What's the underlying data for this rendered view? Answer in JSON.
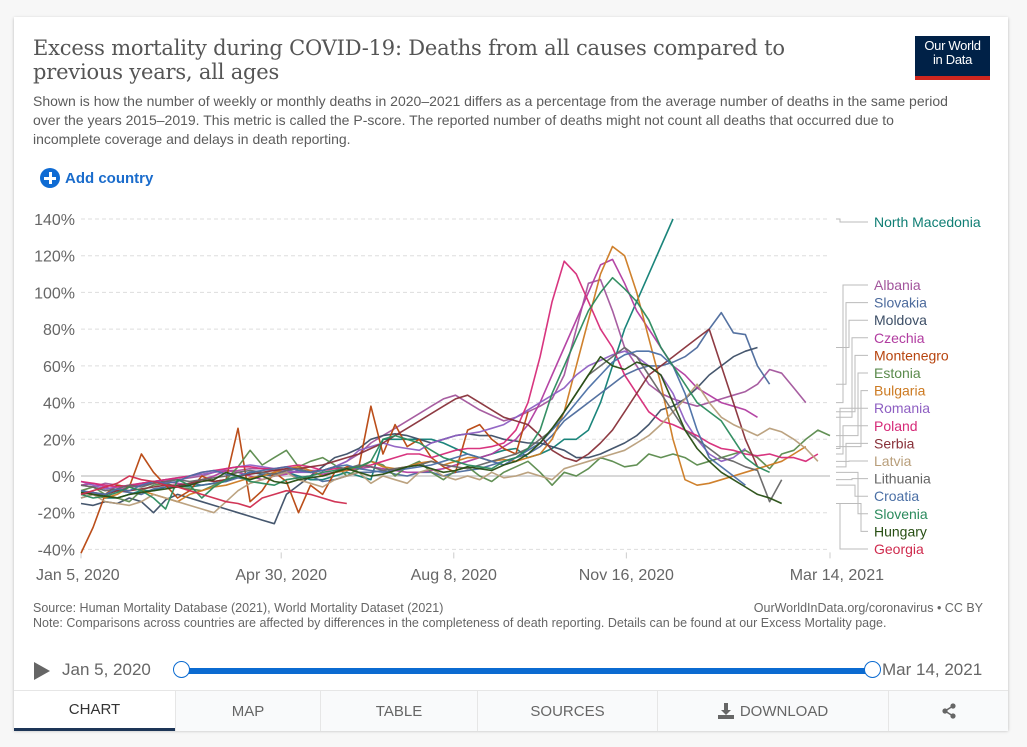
{
  "header": {
    "title": "Excess mortality during COVID-19: Deaths from all causes compared to previous years, all ages",
    "subtitle": "Shown is how the number of weekly or monthly deaths in 2020–2021 differs as a percentage from the average number of deaths in the same period over the years 2015–2019. This metric is called the P-score. The reported number of deaths might not count all deaths that occurred due to incomplete coverage and delays in death reporting.",
    "logo_line1": "Our World",
    "logo_line2": "in Data",
    "add_country_label": "Add country",
    "add_icon": "plus-circle-icon"
  },
  "footer": {
    "source": "Source: Human Mortality Database (2021), World Mortality Dataset (2021)",
    "attribution": "OurWorldInData.org/coronavirus • CC BY",
    "note": "Note: Comparisons across countries are affected by differences in the completeness of death reporting. Details can be found at our Excess Mortality page."
  },
  "timeline": {
    "start_label": "Jan 5, 2020",
    "end_label": "Mar 14, 2021",
    "start_fraction": 0,
    "end_fraction": 1,
    "play_icon": "play-icon"
  },
  "tabs": [
    {
      "label": "CHART",
      "active": true
    },
    {
      "label": "MAP",
      "active": false
    },
    {
      "label": "TABLE",
      "active": false
    },
    {
      "label": "SOURCES",
      "active": false
    },
    {
      "label": "DOWNLOAD",
      "active": false,
      "icon": "download-icon"
    },
    {
      "label": "",
      "active": false,
      "icon": "share-icon"
    }
  ],
  "chart_data": {
    "type": "line",
    "title": "Excess mortality during COVID-19: Deaths from all causes compared to previous years, all ages",
    "xlabel": "",
    "ylabel": "",
    "x_unit": "weeks since Jan 5, 2020",
    "x_range_days": [
      0,
      434
    ],
    "ylim": [
      -40,
      140
    ],
    "yticks": [
      -40,
      -20,
      0,
      20,
      40,
      60,
      80,
      100,
      120,
      140
    ],
    "ytick_labels": [
      "-40%",
      "-20%",
      "0%",
      "20%",
      "40%",
      "60%",
      "80%",
      "100%",
      "120%",
      "140%"
    ],
    "xticks_days": [
      0,
      116,
      216,
      316,
      434
    ],
    "xtick_labels": [
      "Jan 5, 2020",
      "Apr 30, 2020",
      "Aug 8, 2020",
      "Nov 16, 2020",
      "Mar 14, 2021"
    ],
    "grid": "horizontal dashed",
    "legend": "right (labels at line ends)",
    "series": [
      {
        "name": "North Macedonia",
        "color": "#0f7e74",
        "start_week": 0,
        "values": [
          -8,
          -10,
          -12,
          -12,
          -10,
          -8,
          -8,
          -6,
          -5,
          -6,
          -5,
          -4,
          -3,
          0,
          2,
          1,
          0,
          2,
          0,
          -2,
          -2,
          0,
          2,
          0,
          -2,
          20,
          20,
          20,
          20,
          20,
          18,
          15,
          12,
          10,
          12,
          14,
          15,
          10,
          12,
          15,
          20,
          20,
          25,
          40,
          60,
          80,
          95,
          110,
          125,
          140
        ]
      },
      {
        "name": "Albania",
        "color": "#a2559c",
        "start_week": 0,
        "values": [
          -5,
          -6,
          -4,
          -5,
          -6,
          -4,
          -3,
          -2,
          -2,
          -1,
          0,
          2,
          3,
          3,
          4,
          4,
          3,
          2,
          2,
          3,
          3,
          5,
          8,
          12,
          18,
          22,
          26,
          30,
          34,
          38,
          42,
          44,
          40,
          36,
          33,
          30,
          32,
          35,
          38,
          42,
          55,
          80,
          105,
          107,
          90,
          70,
          60,
          50,
          45,
          42,
          40,
          38,
          40,
          42,
          44,
          46,
          50,
          58,
          56,
          48,
          40
        ]
      },
      {
        "name": "Slovakia",
        "color": "#4c6a9c",
        "start_week": 0,
        "values": [
          -12,
          -10,
          -10,
          -8,
          -9,
          -10,
          -7,
          -6,
          -6,
          -4,
          -5,
          -4,
          -3,
          -1,
          -2,
          1,
          0,
          2,
          -1,
          0,
          -3,
          -2,
          0,
          2,
          2,
          3,
          1,
          0,
          2,
          2,
          0,
          2,
          3,
          4,
          6,
          8,
          10,
          12,
          16,
          22,
          30,
          35,
          40,
          45,
          50,
          55,
          58,
          60,
          60,
          62,
          65,
          70,
          80,
          89,
          78,
          77,
          60,
          50
        ]
      },
      {
        "name": "Moldova",
        "color": "#3c4e66",
        "start_week": 0,
        "values": [
          -15,
          -16,
          -14,
          -15,
          -12,
          -14,
          -20,
          -13,
          -10,
          -12,
          -14,
          -16,
          -18,
          -20,
          -22,
          -24,
          -26,
          -10,
          -5,
          0,
          5,
          10,
          12,
          15,
          20,
          22,
          23,
          22,
          20,
          18,
          20,
          22,
          23,
          22,
          22,
          20,
          19,
          18,
          18,
          16,
          14,
          10,
          10,
          12,
          15,
          18,
          22,
          28,
          36,
          38,
          42,
          48,
          55,
          60,
          65,
          68,
          70
        ]
      },
      {
        "name": "Czechia",
        "color": "#b13ca0",
        "start_week": 0,
        "values": [
          -5,
          -4,
          -6,
          -8,
          -6,
          -5,
          -4,
          -3,
          -4,
          -5,
          -2,
          0,
          3,
          2,
          0,
          -2,
          0,
          1,
          3,
          2,
          1,
          2,
          3,
          4,
          5,
          4,
          3,
          2,
          2,
          3,
          4,
          6,
          8,
          10,
          12,
          16,
          20,
          28,
          40,
          55,
          70,
          85,
          100,
          115,
          118,
          105,
          90,
          80,
          70,
          60,
          55,
          48,
          44,
          40,
          38,
          36,
          32
        ]
      },
      {
        "name": "Montenegro",
        "color": "#b7440e",
        "start_week": 0,
        "values": [
          -42,
          -28,
          -10,
          -5,
          -6,
          12,
          2,
          -5,
          -12,
          -8,
          0,
          -3,
          -2,
          26,
          -14,
          -8,
          2,
          -3,
          -20,
          -5,
          -10,
          2,
          5,
          5,
          38,
          12,
          28,
          16,
          20,
          10,
          5,
          2,
          25,
          28,
          20,
          15,
          12,
          35,
          null
        ]
      },
      {
        "name": "Estonia",
        "color": "#5a8a4c",
        "start_week": 0,
        "values": [
          -8,
          -6,
          -10,
          -12,
          -14,
          -8,
          -5,
          -4,
          -6,
          -7,
          -8,
          -5,
          -2,
          5,
          14,
          6,
          10,
          14,
          5,
          8,
          10,
          6,
          0,
          4,
          8,
          6,
          0,
          5,
          8,
          2,
          -2,
          3,
          5,
          0,
          -3,
          2,
          5,
          8,
          2,
          -5,
          2,
          0,
          4,
          10,
          8,
          5,
          6,
          12,
          10,
          12,
          10,
          6,
          8,
          10,
          12,
          14,
          10,
          4,
          12,
          14,
          20,
          25,
          22
        ]
      },
      {
        "name": "Bulgaria",
        "color": "#cc7a22",
        "start_week": 0,
        "values": [
          -9,
          -10,
          -12,
          -10,
          -6,
          -8,
          -10,
          -12,
          -14,
          -10,
          -8,
          -6,
          -5,
          -3,
          -1,
          0,
          2,
          4,
          5,
          3,
          0,
          2,
          3,
          5,
          8,
          5,
          4,
          5,
          7,
          8,
          6,
          8,
          10,
          10,
          8,
          9,
          8,
          10,
          12,
          20,
          35,
          60,
          85,
          110,
          125,
          120,
          100,
          75,
          50,
          20,
          -2,
          -5,
          -4,
          -2,
          0,
          2,
          4,
          6,
          8,
          12,
          16
        ]
      },
      {
        "name": "Romania",
        "color": "#8e5fc2",
        "start_week": 0,
        "values": [
          -3,
          -5,
          -7,
          -6,
          -5,
          -4,
          -3,
          -2,
          -1,
          0,
          1,
          2,
          4,
          5,
          6,
          5,
          4,
          3,
          2,
          2,
          3,
          5,
          8,
          14,
          16,
          18,
          16,
          15,
          14,
          18,
          20,
          22,
          23,
          24,
          26,
          28,
          32,
          36,
          40,
          44,
          48,
          55,
          60,
          63,
          66,
          68,
          65,
          60,
          55,
          45,
          30,
          20,
          12,
          8,
          10,
          15
        ]
      },
      {
        "name": "Poland",
        "color": "#d62a78",
        "start_week": 0,
        "values": [
          -3,
          -4,
          -5,
          -6,
          -5,
          -4,
          -3,
          -2,
          -1,
          0,
          2,
          3,
          4,
          5,
          5,
          4,
          4,
          5,
          6,
          5,
          3,
          4,
          4,
          5,
          6,
          8,
          10,
          12,
          12,
          10,
          12,
          14,
          15,
          15,
          16,
          18,
          25,
          40,
          65,
          95,
          117,
          110,
          95,
          80,
          70,
          55,
          45,
          35,
          30,
          28,
          25,
          22,
          18,
          15,
          14,
          12,
          11,
          12,
          10,
          10,
          8,
          12
        ]
      },
      {
        "name": "Serbia",
        "color": "#883039",
        "start_week": 0,
        "values": [
          -10,
          -9,
          -10,
          -8,
          -8,
          -7,
          -6,
          -5,
          -5,
          -4,
          -2,
          -3,
          -2,
          0,
          1,
          2,
          3,
          4,
          4,
          5,
          6,
          8,
          10,
          12,
          15,
          18,
          22,
          26,
          30,
          34,
          38,
          42,
          44,
          40,
          36,
          32,
          30,
          28,
          22,
          14,
          10,
          8,
          12,
          18,
          25,
          35,
          45,
          55,
          60,
          65,
          70,
          75,
          80,
          60,
          40,
          20,
          5
        ]
      },
      {
        "name": "Latvia",
        "color": "#b89e7a",
        "start_week": 0,
        "values": [
          -12,
          -10,
          -14,
          -15,
          -16,
          -14,
          -10,
          -12,
          -14,
          -16,
          -18,
          -20,
          -14,
          -8,
          -4,
          -2,
          0,
          2,
          -2,
          -4,
          -6,
          -2,
          0,
          2,
          -4,
          0,
          -2,
          -4,
          2,
          4,
          0,
          -2,
          0,
          -2,
          2,
          -1,
          0,
          2,
          0,
          -2,
          4,
          6,
          8,
          10,
          12,
          14,
          18,
          22,
          28,
          35,
          42,
          50,
          40,
          32,
          28,
          25,
          22,
          26,
          24,
          20,
          15,
          8
        ]
      },
      {
        "name": "Lithuania",
        "color": "#666666",
        "start_week": 0,
        "values": [
          -5,
          -6,
          -8,
          -7,
          -5,
          -6,
          -4,
          -3,
          -2,
          -3,
          -2,
          -1,
          0,
          2,
          3,
          2,
          1,
          3,
          4,
          2,
          3,
          5,
          4,
          6,
          5,
          3,
          4,
          5,
          6,
          8,
          6,
          5,
          4,
          6,
          8,
          10,
          12,
          15,
          20,
          25,
          35,
          45,
          55,
          60,
          65,
          70,
          65,
          55,
          45,
          35,
          25,
          20,
          15,
          10,
          8,
          5,
          3,
          -14,
          -2
        ]
      },
      {
        "name": "Croatia",
        "color": "#4a6fa5",
        "start_week": 0,
        "values": [
          -8,
          -9,
          -10,
          -7,
          -8,
          -5,
          -3,
          -4,
          -3,
          0,
          2,
          3,
          1,
          0,
          2,
          3,
          4,
          5,
          3,
          2,
          3,
          5,
          6,
          4,
          3,
          2,
          3,
          4,
          5,
          6,
          8,
          10,
          12,
          10,
          8,
          6,
          10,
          14,
          18,
          25,
          32,
          40,
          48,
          55,
          62,
          66,
          68,
          68,
          66,
          60,
          45,
          25,
          10,
          5,
          0,
          -5
        ]
      },
      {
        "name": "Slovenia",
        "color": "#2a8a5c",
        "start_week": 0,
        "values": [
          -10,
          -12,
          -11,
          -9,
          -6,
          -8,
          -12,
          -18,
          -2,
          -5,
          -12,
          -6,
          -2,
          0,
          -3,
          -4,
          -5,
          -2,
          -1,
          0,
          2,
          3,
          4,
          5,
          8,
          20,
          22,
          20,
          18,
          14,
          10,
          8,
          6,
          5,
          4,
          8,
          10,
          15,
          25,
          45,
          60,
          75,
          90,
          100,
          108,
          102,
          95,
          85,
          70,
          60,
          50,
          40,
          35,
          30,
          20,
          10,
          5,
          2
        ]
      },
      {
        "name": "Hungary",
        "color": "#274e13",
        "start_week": 0,
        "values": [
          -9,
          -10,
          -11,
          -12,
          -10,
          -9,
          -8,
          -7,
          -6,
          -5,
          -3,
          -2,
          2,
          0,
          -2,
          0,
          -3,
          -4,
          -2,
          -1,
          0,
          2,
          4,
          2,
          0,
          1,
          3,
          5,
          6,
          4,
          2,
          3,
          5,
          4,
          3,
          6,
          8,
          12,
          18,
          26,
          35,
          45,
          55,
          65,
          60,
          58,
          62,
          60,
          55,
          40,
          25,
          15,
          8,
          2,
          -2,
          -6,
          -10,
          -12,
          -15
        ]
      },
      {
        "name": "Georgia",
        "color": "#cf2b4e",
        "start_week": 0,
        "values": [
          -10,
          -8,
          -6,
          -4,
          0,
          -2,
          -3,
          -5,
          -6,
          -8,
          -10,
          -12,
          -14,
          -15,
          -17,
          -12,
          -10,
          -8,
          -9,
          -10,
          -12,
          -14,
          -15,
          null
        ]
      }
    ]
  }
}
